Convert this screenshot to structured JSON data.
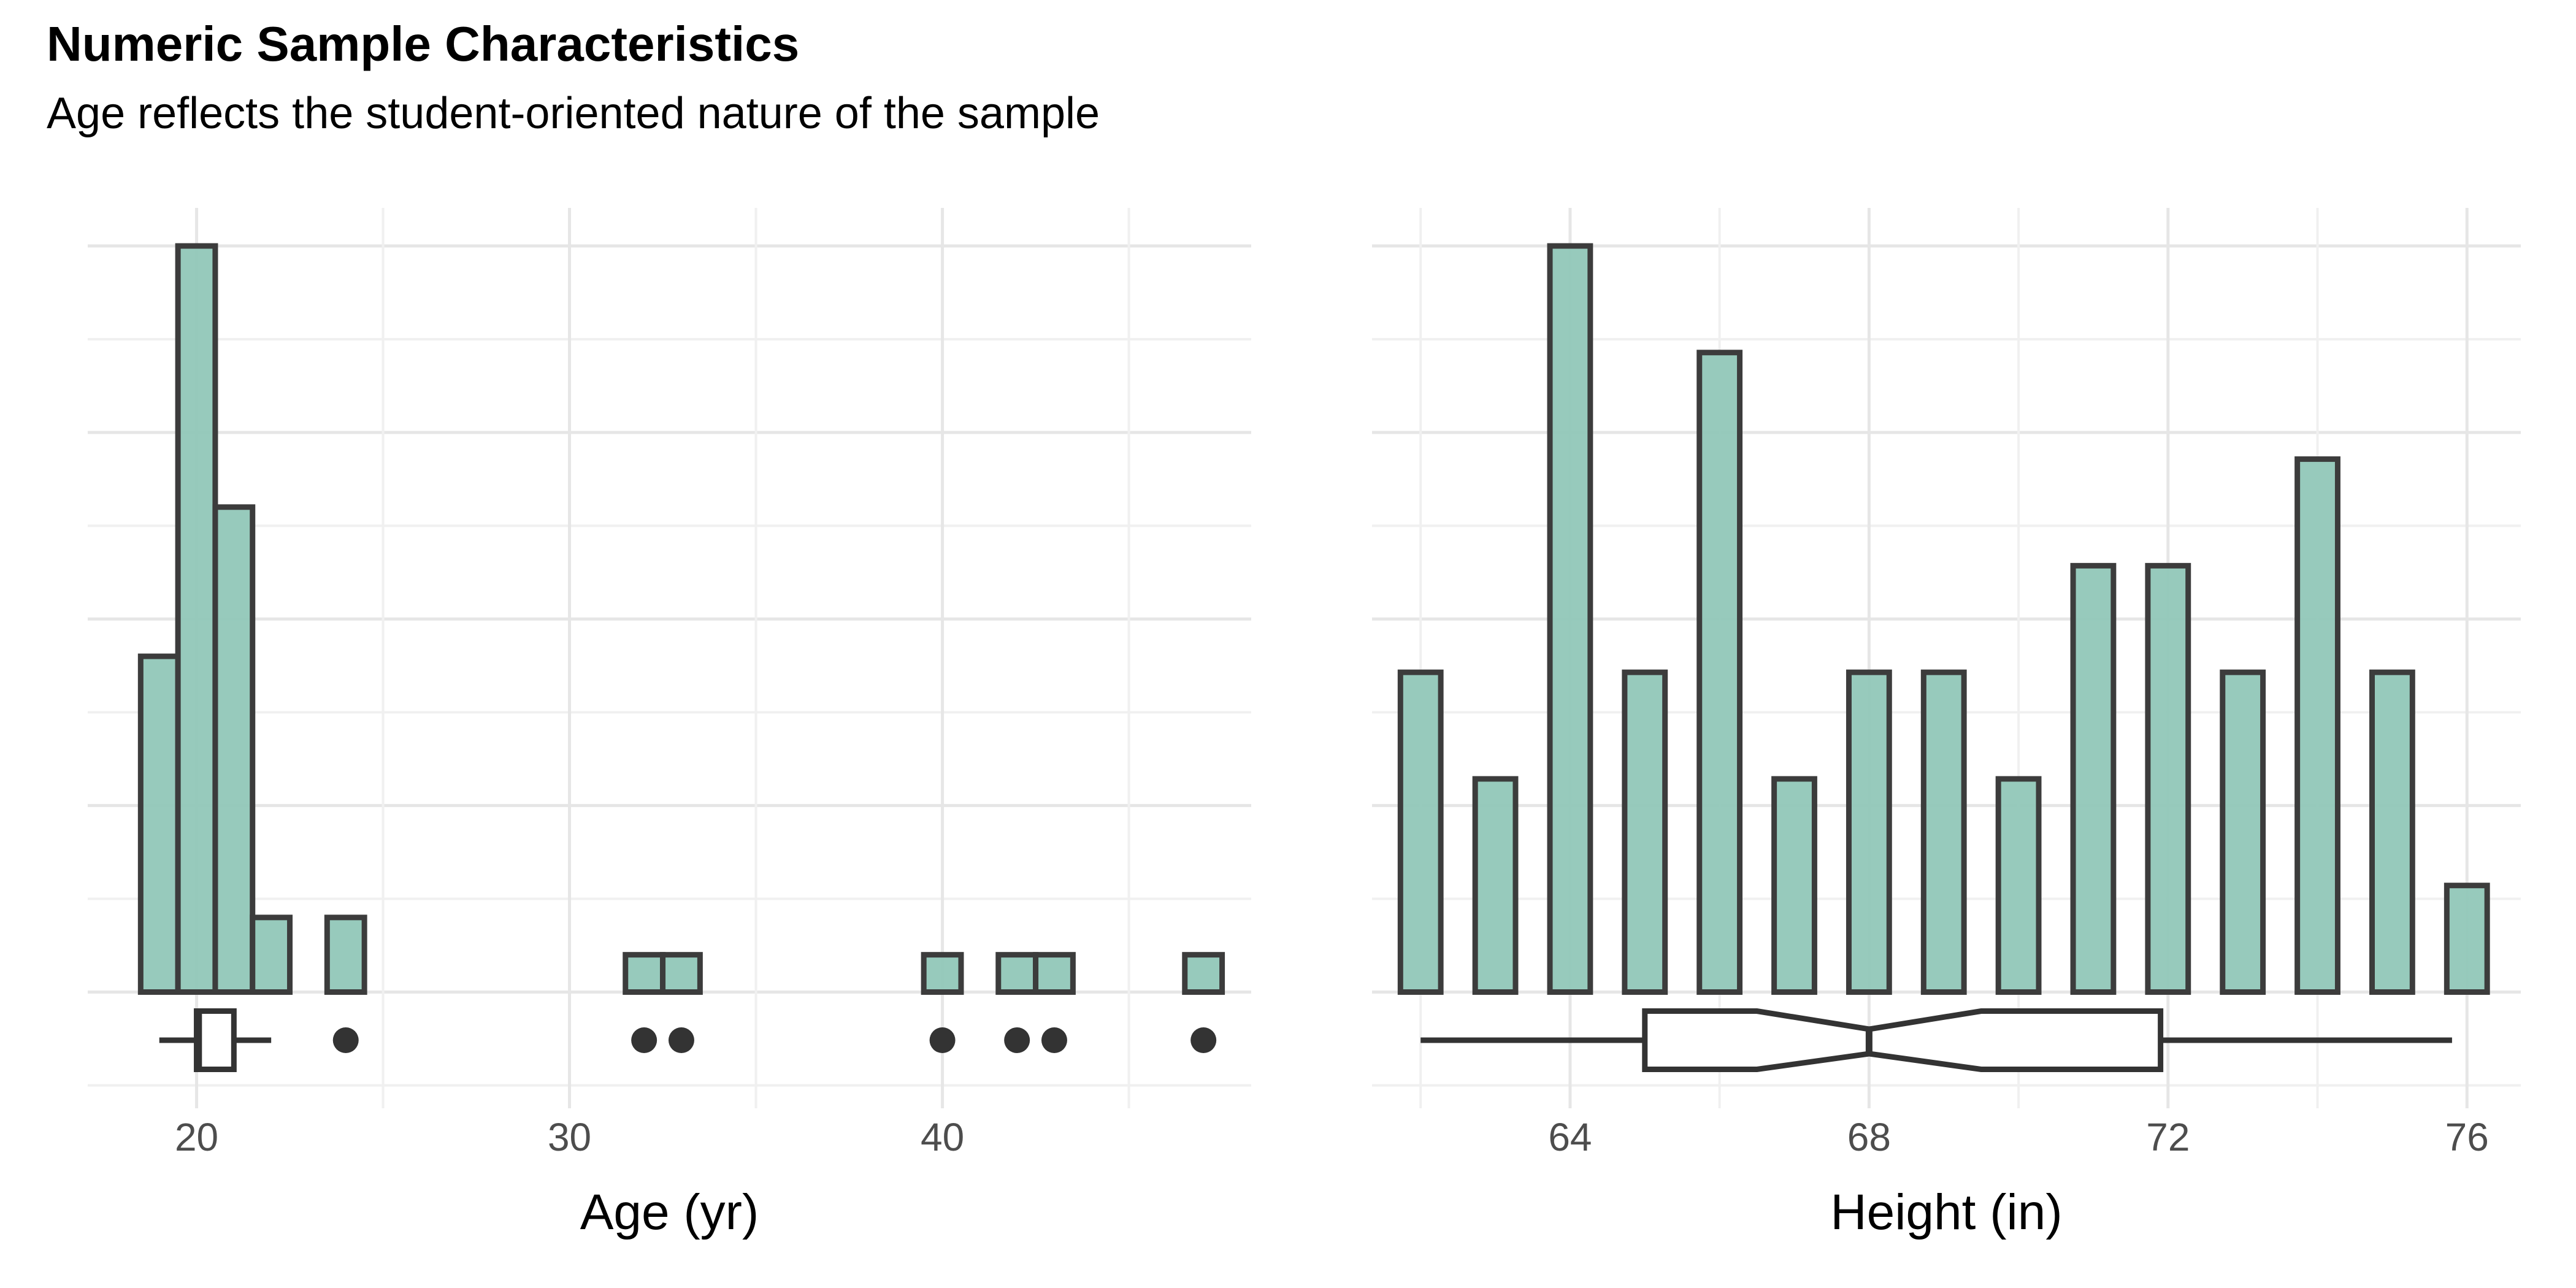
{
  "title": "Numeric Sample Characteristics",
  "subtitle": "Age reflects the student-oriented nature of the sample",
  "colors": {
    "background": "#ffffff",
    "bar_fill": "#91C7B8",
    "bar_stroke": "#3C3C3C",
    "grid_major": "#E6E6E6",
    "grid_minor": "#F0F0F0",
    "box_fill": "#FFFFFF",
    "box_stroke": "#333333",
    "outlier_dot": "#333333",
    "tick_label": "#4D4D4D",
    "axis_title": "#000000"
  },
  "chart_data": [
    {
      "type": "bar",
      "subtype": "histogram-with-boxplot",
      "xlabel": "Age (yr)",
      "x_ticks": [
        {
          "label": "20",
          "value": 20
        },
        {
          "label": "30",
          "value": 30
        },
        {
          "label": "40",
          "value": 40
        }
      ],
      "x_gridlines_major": [
        20,
        30,
        40
      ],
      "x_gridlines_minor": [
        25,
        35,
        45
      ],
      "xlim": [
        17.08,
        48.28
      ],
      "bin_width": 1,
      "bar_width_frac": 1.0,
      "categories": [
        19,
        20,
        21,
        22,
        24,
        32,
        33,
        40,
        42,
        43,
        47
      ],
      "values": [
        9,
        20,
        13,
        2,
        2,
        1,
        1,
        1,
        1,
        1,
        1
      ],
      "y_axis": "count (unlabeled)",
      "ylim": [
        0,
        20
      ],
      "y_gridline_step": 2.5,
      "grid": true,
      "legend": "none",
      "boxplot": {
        "whisker_min": 19,
        "q1": 20,
        "median": 20.07,
        "q3": 21,
        "whisker_max": 22,
        "outliers": [
          24,
          32,
          33,
          40,
          42,
          43,
          47
        ],
        "notched": false
      }
    },
    {
      "type": "bar",
      "subtype": "histogram-with-boxplot",
      "xlabel": "Height (in)",
      "x_ticks": [
        {
          "label": "64",
          "value": 64
        },
        {
          "label": "68",
          "value": 68
        },
        {
          "label": "72",
          "value": 72
        },
        {
          "label": "76",
          "value": 76
        }
      ],
      "x_gridlines_major": [
        64,
        68,
        72,
        76
      ],
      "x_gridlines_minor": [
        62,
        66,
        70,
        74
      ],
      "xlim": [
        61.35,
        76.72
      ],
      "bin_width": 1,
      "bar_width_frac": 0.54,
      "categories": [
        62,
        63,
        64,
        65,
        66,
        67,
        68,
        69,
        70,
        71,
        72,
        73,
        74,
        75,
        76
      ],
      "values": [
        3,
        2,
        7,
        3,
        6,
        2,
        3,
        3,
        2,
        4,
        4,
        3,
        5,
        3,
        1
      ],
      "y_axis": "count (unlabeled, scaled so max bar matches left panel height)",
      "ylim": [
        0,
        7
      ],
      "grid": true,
      "legend": "none",
      "boxplot": {
        "whisker_min": 62,
        "q1": 65,
        "median": 68,
        "q3": 71.9,
        "whisker_max": 75.8,
        "outliers": [],
        "notched": true,
        "notch_low": 66.5,
        "notch_high": 69.5
      }
    }
  ]
}
